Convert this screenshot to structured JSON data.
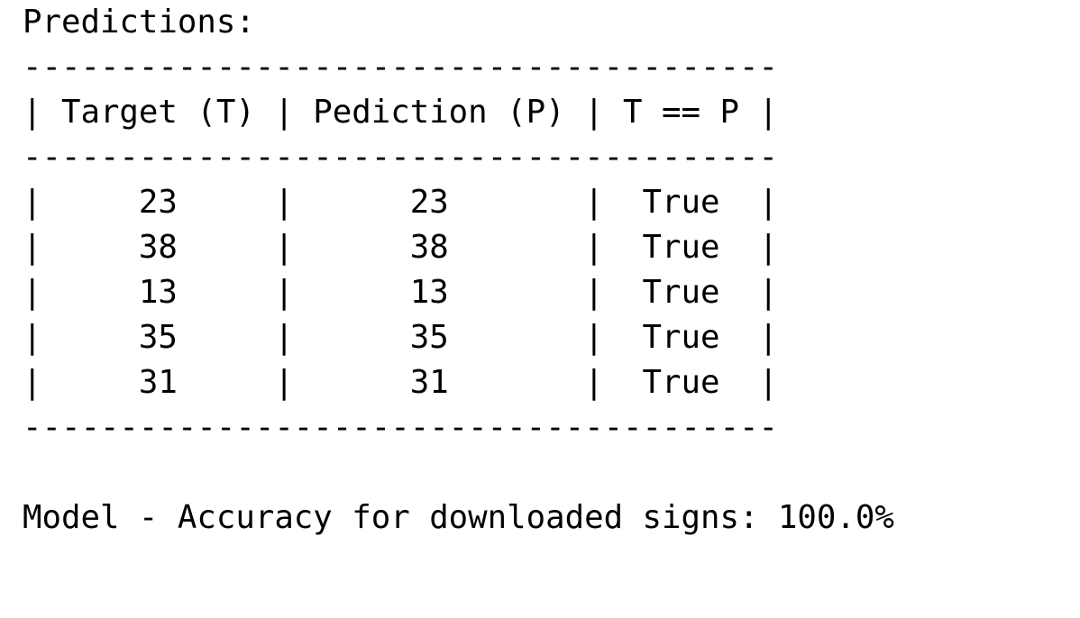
{
  "console": {
    "title": "Predictions:",
    "separator": "---------------------------------------",
    "header_row": "| Target (T) | Pediction (P) | T == P |",
    "rows": [
      "|     23     |      23       |  True  |",
      "|     38     |      38       |  True  |",
      "|     13     |      13       |  True  |",
      "|     35     |      35       |  True  |",
      "|     31     |      31       |  True  |"
    ],
    "table": {
      "columns": [
        "Target (T)",
        "Pediction (P)",
        "T == P"
      ],
      "values": [
        [
          "23",
          "23",
          "True"
        ],
        [
          "38",
          "38",
          "True"
        ],
        [
          "13",
          "13",
          "True"
        ],
        [
          "35",
          "35",
          "True"
        ],
        [
          "31",
          "31",
          "True"
        ]
      ]
    },
    "accuracy_text": "Model - Accuracy for downloaded signs: 100.0%"
  }
}
